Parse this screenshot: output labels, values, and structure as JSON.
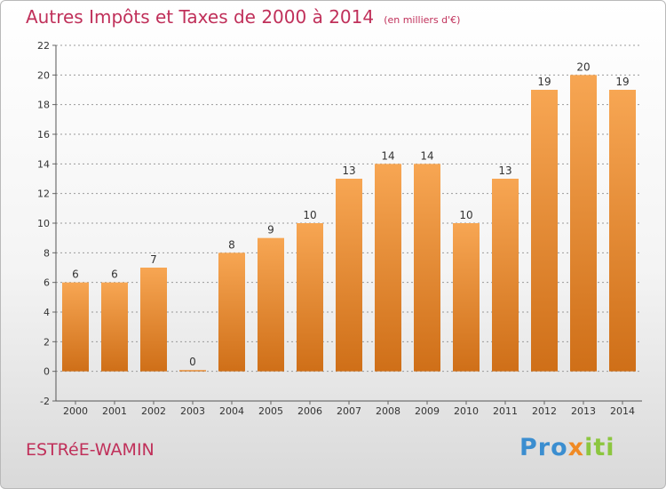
{
  "header": {
    "title": "Autres Impôts et Taxes de 2000 à 2014",
    "unit": "(en milliers d'€)"
  },
  "footer": {
    "commune": "ESTRéE-WAMIN",
    "logo": {
      "part1": "Pro",
      "part2": "x",
      "part3": "iti"
    }
  },
  "colors": {
    "title": "#c0305a",
    "bar_light": "#f7a653",
    "bar_dark": "#cf6f18",
    "grid": "#9a9a9a"
  },
  "chart_data": {
    "type": "bar",
    "title": "Autres Impôts et Taxes de 2000 à 2014",
    "subtitle": "(en milliers d'€)",
    "categories": [
      "2000",
      "2001",
      "2002",
      "2003",
      "2004",
      "2005",
      "2006",
      "2007",
      "2008",
      "2009",
      "2010",
      "2011",
      "2012",
      "2013",
      "2014"
    ],
    "values": [
      6,
      6,
      7,
      0,
      8,
      9,
      10,
      13,
      14,
      14,
      10,
      13,
      19,
      20,
      19
    ],
    "data_labels": [
      "6",
      "6",
      "7",
      "0",
      "8",
      "9",
      "10",
      "13",
      "14",
      "14",
      "10",
      "13",
      "19",
      "20",
      "19"
    ],
    "yticks": [
      -2,
      0,
      2,
      4,
      6,
      8,
      10,
      12,
      14,
      16,
      18,
      20,
      22
    ],
    "ylim": [
      -2,
      22
    ],
    "grid": "horizontal dashed",
    "legend": "none"
  }
}
